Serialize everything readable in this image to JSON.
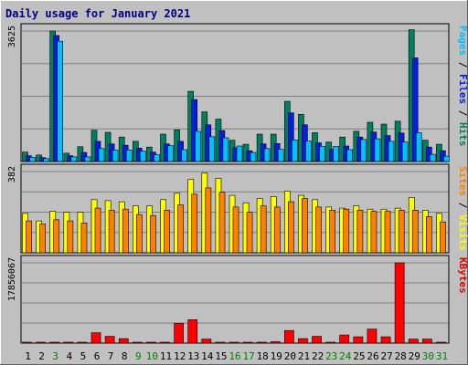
{
  "chart_data": {
    "type": "bar",
    "title": "Daily usage for January 2021",
    "x": [
      "1",
      "2",
      "3",
      "4",
      "5",
      "6",
      "7",
      "8",
      "9",
      "10",
      "11",
      "12",
      "13",
      "14",
      "15",
      "16",
      "17",
      "18",
      "19",
      "20",
      "21",
      "22",
      "23",
      "24",
      "25",
      "26",
      "27",
      "28",
      "29",
      "30",
      "31"
    ],
    "weekend_days": [
      "3",
      "9",
      "10",
      "16",
      "17",
      "23",
      "24",
      "30",
      "31"
    ],
    "panels": [
      {
        "name": "hits-files-pages",
        "ymax_label": "3625",
        "ymax": 3625,
        "right_label": [
          {
            "text": "Pages",
            "color": "#00c0ff"
          },
          {
            "text": " / ",
            "color": "#000000"
          },
          {
            "text": "Files",
            "color": "#0020e0"
          },
          {
            "text": " / ",
            "color": "#000000"
          },
          {
            "text": "Hits",
            "color": "#008060"
          }
        ],
        "series": [
          {
            "name": "Hits",
            "color": "#008060",
            "values": [
              260,
              180,
              3625,
              230,
              410,
              870,
              810,
              680,
              560,
              400,
              760,
              880,
              1950,
              1380,
              1180,
              590,
              480,
              760,
              760,
              1670,
              1310,
              800,
              540,
              680,
              840,
              1090,
              1040,
              1120,
              3660,
              590,
              480
            ]
          },
          {
            "name": "Files",
            "color": "#0020e0",
            "values": [
              160,
              110,
              3500,
              160,
              250,
              560,
              490,
              450,
              370,
              260,
              490,
              560,
              1720,
              1020,
              860,
              380,
              300,
              490,
              500,
              1350,
              1020,
              520,
              340,
              430,
              680,
              820,
              720,
              790,
              2880,
              400,
              300
            ]
          },
          {
            "name": "Pages",
            "color": "#00c0ff",
            "values": [
              120,
              80,
              3340,
              130,
              130,
              360,
              320,
              320,
              290,
              190,
              440,
              330,
              840,
              690,
              660,
              430,
              250,
              360,
              340,
              600,
              570,
              420,
              420,
              330,
              610,
              630,
              560,
              540,
              800,
              200,
              150
            ]
          }
        ]
      },
      {
        "name": "visits-sites",
        "ymax_label": "382",
        "ymax": 382,
        "right_label": [
          {
            "text": "Sites",
            "color": "#ff8000"
          },
          {
            "text": " / ",
            "color": "#000000"
          },
          {
            "text": "Visits",
            "color": "#ffff00"
          }
        ],
        "series": [
          {
            "name": "Visits",
            "color": "#ffff00",
            "values": [
              185,
              150,
              195,
              190,
              190,
              250,
              245,
              240,
              220,
              220,
              250,
              280,
              345,
              375,
              350,
              270,
              235,
              255,
              265,
              290,
              270,
              250,
              215,
              210,
              220,
              205,
              205,
              210,
              260,
              200,
              185
            ]
          },
          {
            "name": "Sites",
            "color": "#ff8000",
            "values": [
              150,
              135,
              155,
              150,
              140,
              210,
              200,
              205,
              180,
              175,
              200,
              225,
              275,
              305,
              285,
              215,
              190,
              220,
              215,
              240,
              255,
              215,
              200,
              205,
              200,
              195,
              195,
              200,
              200,
              170,
              145
            ]
          }
        ]
      },
      {
        "name": "kbytes",
        "ymax_label": "17856067",
        "ymax": 17856067,
        "right_label": [
          {
            "text": "KBytes",
            "color": "#e00000"
          }
        ],
        "series": [
          {
            "name": "KBytes",
            "color": "#ff0000",
            "values": [
              150000,
              150000,
              150000,
              150000,
              150000,
              2300000,
              1500000,
              1000000,
              150000,
              150000,
              150000,
              4400000,
              5200000,
              900000,
              150000,
              150000,
              150000,
              150000,
              300000,
              2800000,
              1000000,
              1500000,
              150000,
              1800000,
              1400000,
              3100000,
              1400000,
              17856067,
              900000,
              900000,
              150000
            ]
          }
        ]
      }
    ]
  }
}
